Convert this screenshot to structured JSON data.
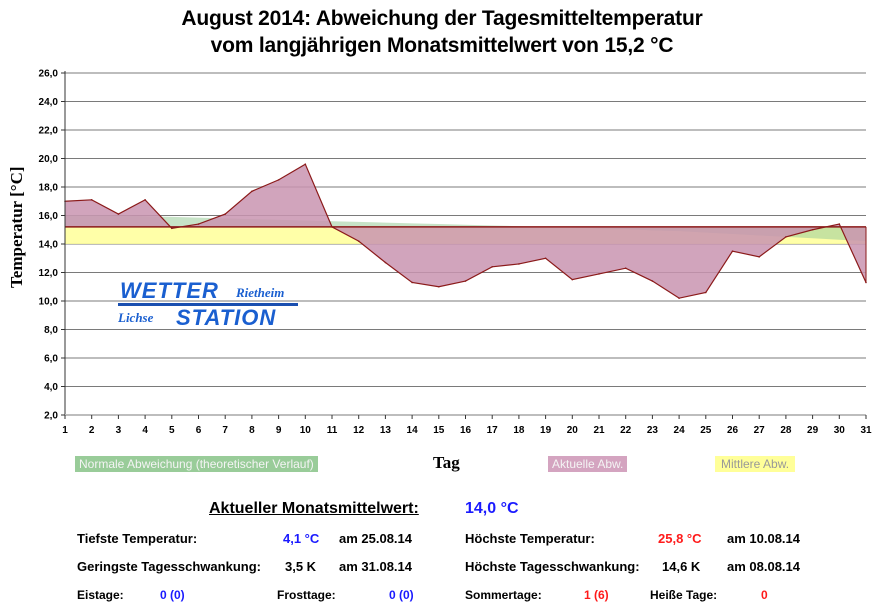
{
  "title": {
    "line1": "August 2014: Abweichung der Tagesmitteltemperatur",
    "line2": "vom langjährigen Monatsmittelwert von 15,2 °C"
  },
  "chart_data": {
    "type": "area",
    "title": "August 2014: Abweichung der Tagesmitteltemperatur vom langjährigen Monatsmittelwert von 15,2 °C",
    "xlabel": "Tag",
    "ylabel": "Temperatur [°C]",
    "ylim": [
      2.0,
      26.0
    ],
    "y_ticks": [
      "2,0",
      "4,0",
      "6,0",
      "8,0",
      "10,0",
      "12,0",
      "14,0",
      "16,0",
      "18,0",
      "20,0",
      "22,0",
      "24,0",
      "26,0"
    ],
    "x": [
      1,
      2,
      3,
      4,
      5,
      6,
      7,
      8,
      9,
      10,
      11,
      12,
      13,
      14,
      15,
      16,
      17,
      18,
      19,
      20,
      21,
      22,
      23,
      24,
      25,
      26,
      27,
      28,
      29,
      30,
      31
    ],
    "grid": true,
    "reference_value": 15.2,
    "current_mean": 14.0,
    "series": [
      {
        "name": "Aktuelle Abw.",
        "color": "#c994b0",
        "line_color": "#8b1a1a",
        "values": [
          17.0,
          17.1,
          16.1,
          17.1,
          15.1,
          15.4,
          16.1,
          17.7,
          18.5,
          19.6,
          15.2,
          14.2,
          12.7,
          11.3,
          11.0,
          11.4,
          12.4,
          12.6,
          13.0,
          11.5,
          11.9,
          12.3,
          11.4,
          10.2,
          10.6,
          13.5,
          13.1,
          14.5,
          15.0,
          15.4,
          11.3
        ]
      },
      {
        "name": "Normale Abweichung (theoretischer Verlauf)",
        "color": "#99cc99",
        "values": [
          16.0,
          16.0,
          16.0,
          15.95,
          15.9,
          15.85,
          15.8,
          15.75,
          15.7,
          15.65,
          15.6,
          15.55,
          15.5,
          15.45,
          15.4,
          15.35,
          15.3,
          15.25,
          15.2,
          15.15,
          15.1,
          15.05,
          14.95,
          14.9,
          14.8,
          14.7,
          14.6,
          14.5,
          14.4,
          14.3,
          14.2
        ]
      },
      {
        "name": "Mittlere Abw.",
        "color": "#ffff99",
        "from": 15.2,
        "to": 14.0
      }
    ],
    "legend": [
      "Normale Abweichung (theoretischer Verlauf)",
      "Aktuelle Abw.",
      "Mittlere Abw."
    ],
    "legend_position": "bottom"
  },
  "legend": {
    "normal": "Normale Abweichung (theoretischer Verlauf)",
    "current": "Aktuelle Abw.",
    "mean": "Mittlere Abw."
  },
  "logo": {
    "word1": "WETTER",
    "word2": "STATION",
    "place1": "Rietheim",
    "place2": "Lichse"
  },
  "stats": {
    "month_mean_label": "Aktueller Monatsmittelwert:",
    "month_mean_value": "14,0 °C",
    "min_temp_label": "Tiefste Temperatur:",
    "min_temp_value": "4,1 °C",
    "min_temp_date": "am 25.08.14",
    "min_range_label": "Geringste Tagesschwankung:",
    "min_range_value": "3,5 K",
    "min_range_date": "am 31.08.14",
    "max_temp_label": "Höchste Temperatur:",
    "max_temp_value": "25,8 °C",
    "max_temp_date": "am 10.08.14",
    "max_range_label": "Höchste Tagesschwankung:",
    "max_range_value": "14,6 K",
    "max_range_date": "am 08.08.14",
    "ice_days_label": "Eistage:",
    "ice_days_value": "0 (0)",
    "frost_days_label": "Frosttage:",
    "frost_days_value": "0 (0)",
    "summer_days_label": "Sommertage:",
    "summer_days_value": "1 (6)",
    "hot_days_label": "Heiße Tage:",
    "hot_days_value": "0"
  }
}
